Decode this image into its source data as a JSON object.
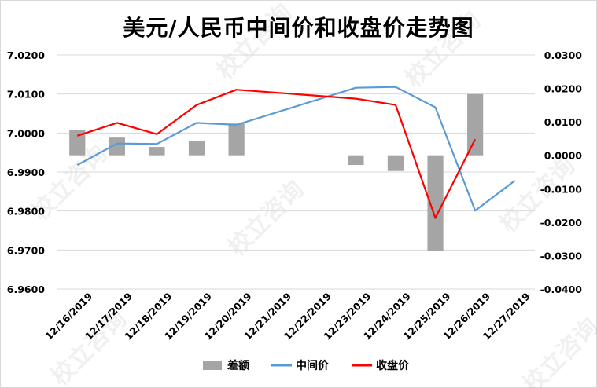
{
  "chart_data": {
    "type": "bar+line",
    "title": "美元/人民币中间价和收盘价走势图",
    "categories": [
      "12/16/2019",
      "12/17/2019",
      "12/18/2019",
      "12/19/2019",
      "12/20/2019",
      "12/21/2019",
      "12/22/2019",
      "12/23/2019",
      "12/24/2019",
      "12/25/2019",
      "12/26/2019",
      "12/27/2019"
    ],
    "left_axis": {
      "ylim": [
        6.96,
        7.02
      ],
      "ticks": [
        "7.0200",
        "7.0100",
        "7.0000",
        "6.9900",
        "6.9800",
        "6.9700",
        "6.9600"
      ]
    },
    "right_axis": {
      "ylim": [
        -0.04,
        0.03
      ],
      "ticks": [
        "0.0300",
        "0.0200",
        "0.0100",
        "0.0000",
        "-0.0100",
        "-0.0200",
        "-0.0300",
        "-0.0400"
      ]
    },
    "series": [
      {
        "name": "差额",
        "type": "bar",
        "axis": "right",
        "color": "#a5a5a5",
        "values": [
          0.0075,
          0.0053,
          0.0025,
          0.0044,
          0.0095,
          null,
          null,
          -0.0029,
          -0.0047,
          -0.0285,
          0.0183,
          null
        ]
      },
      {
        "name": "中间价",
        "type": "line",
        "axis": "left",
        "color": "#5b9bd5",
        "values": [
          6.9918,
          6.9973,
          6.9972,
          7.0026,
          7.0021,
          null,
          null,
          7.0116,
          7.0118,
          7.0066,
          6.9801,
          6.9878
        ]
      },
      {
        "name": "收盘价",
        "type": "line",
        "axis": "left",
        "color": "#ff0000",
        "values": [
          6.9993,
          7.0026,
          6.9997,
          7.0072,
          7.0111,
          null,
          null,
          7.0088,
          7.0072,
          6.9782,
          6.9984,
          null
        ]
      }
    ],
    "legend": {
      "placement": "bottom"
    },
    "grid": true
  },
  "watermark": "校立咨询"
}
